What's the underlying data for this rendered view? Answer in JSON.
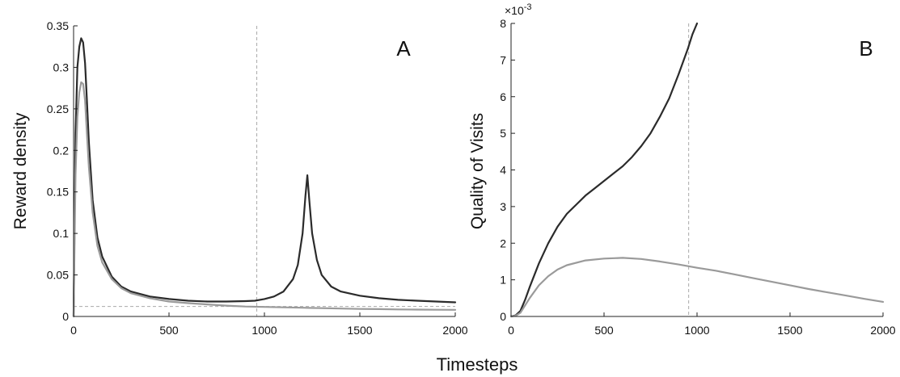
{
  "figure": {
    "shared_xlabel": "Timesteps"
  },
  "chart_data": [
    {
      "type": "line",
      "panel_label": "A",
      "title": "",
      "xlabel": "",
      "ylabel": "Reward density",
      "xlim": [
        0,
        2000
      ],
      "ylim": [
        0,
        0.35
      ],
      "xticks": [
        "0",
        "500",
        "1000",
        "1500",
        "2000"
      ],
      "yticks": [
        "0",
        "0.05",
        "0.1",
        "0.15",
        "0.2",
        "0.25",
        "0.3",
        "0.35"
      ],
      "grid": false,
      "legend": "none",
      "vline": {
        "x": 960,
        "style": "dashed",
        "color": "#aaaaaa"
      },
      "hline": {
        "y": 0.012,
        "style": "dashed",
        "color": "#aaaaaa"
      },
      "series": [
        {
          "color": "#2b2b2b",
          "x": [
            0,
            10,
            20,
            30,
            40,
            50,
            60,
            70,
            80,
            100,
            125,
            150,
            200,
            250,
            300,
            400,
            500,
            600,
            700,
            800,
            900,
            950,
            1000,
            1050,
            1100,
            1150,
            1175,
            1200,
            1215,
            1225,
            1235,
            1250,
            1275,
            1300,
            1350,
            1400,
            1500,
            1600,
            1700,
            1800,
            1900,
            2000
          ],
          "y": [
            0,
            0.22,
            0.3,
            0.325,
            0.335,
            0.33,
            0.305,
            0.26,
            0.21,
            0.14,
            0.095,
            0.072,
            0.048,
            0.036,
            0.03,
            0.024,
            0.021,
            0.019,
            0.018,
            0.018,
            0.0185,
            0.019,
            0.021,
            0.024,
            0.03,
            0.045,
            0.062,
            0.1,
            0.145,
            0.17,
            0.14,
            0.1,
            0.068,
            0.05,
            0.036,
            0.03,
            0.025,
            0.022,
            0.02,
            0.019,
            0.018,
            0.017
          ]
        },
        {
          "color": "#9a9a9a",
          "x": [
            0,
            10,
            20,
            30,
            40,
            50,
            60,
            70,
            80,
            100,
            125,
            150,
            200,
            250,
            300,
            400,
            500,
            600,
            700,
            800,
            900,
            1000,
            1100,
            1200,
            1300,
            1400,
            1500,
            1600,
            1700,
            1800,
            1900,
            2000
          ],
          "y": [
            0,
            0.17,
            0.24,
            0.27,
            0.282,
            0.28,
            0.26,
            0.22,
            0.18,
            0.125,
            0.085,
            0.065,
            0.045,
            0.034,
            0.028,
            0.022,
            0.018,
            0.016,
            0.0145,
            0.013,
            0.012,
            0.0115,
            0.011,
            0.0105,
            0.01,
            0.0095,
            0.009,
            0.0088,
            0.0085,
            0.0083,
            0.0081,
            0.008
          ]
        }
      ]
    },
    {
      "type": "line",
      "panel_label": "B",
      "title": "",
      "xlabel": "",
      "ylabel": "Quality of Visits",
      "exponent_label": "×10",
      "exponent_power": "-3",
      "xlim": [
        0,
        2000
      ],
      "ylim": [
        0,
        8
      ],
      "xticks": [
        "0",
        "500",
        "1000",
        "1500",
        "2000"
      ],
      "yticks": [
        "0",
        "1",
        "2",
        "3",
        "4",
        "5",
        "6",
        "7",
        "8"
      ],
      "grid": false,
      "legend": "none",
      "vline": {
        "x": 955,
        "style": "dashed",
        "color": "#aaaaaa"
      },
      "series": [
        {
          "color": "#2b2b2b",
          "x": [
            0,
            25,
            50,
            75,
            100,
            150,
            200,
            250,
            300,
            350,
            400,
            450,
            500,
            550,
            600,
            650,
            700,
            750,
            800,
            850,
            900,
            950,
            975,
            1000
          ],
          "y": [
            0,
            0.03,
            0.15,
            0.45,
            0.8,
            1.45,
            2.0,
            2.45,
            2.8,
            3.05,
            3.3,
            3.5,
            3.7,
            3.9,
            4.1,
            4.35,
            4.65,
            5.0,
            5.45,
            5.95,
            6.6,
            7.3,
            7.7,
            8.0
          ]
        },
        {
          "color": "#9a9a9a",
          "x": [
            0,
            25,
            50,
            75,
            100,
            150,
            200,
            250,
            300,
            400,
            500,
            600,
            700,
            800,
            900,
            1000,
            1100,
            1200,
            1300,
            1400,
            1500,
            1600,
            1700,
            1800,
            1900,
            2000
          ],
          "y": [
            0,
            0.02,
            0.1,
            0.3,
            0.5,
            0.85,
            1.1,
            1.28,
            1.4,
            1.53,
            1.58,
            1.6,
            1.57,
            1.5,
            1.42,
            1.33,
            1.25,
            1.15,
            1.05,
            0.95,
            0.85,
            0.75,
            0.66,
            0.57,
            0.48,
            0.4
          ]
        }
      ]
    }
  ]
}
